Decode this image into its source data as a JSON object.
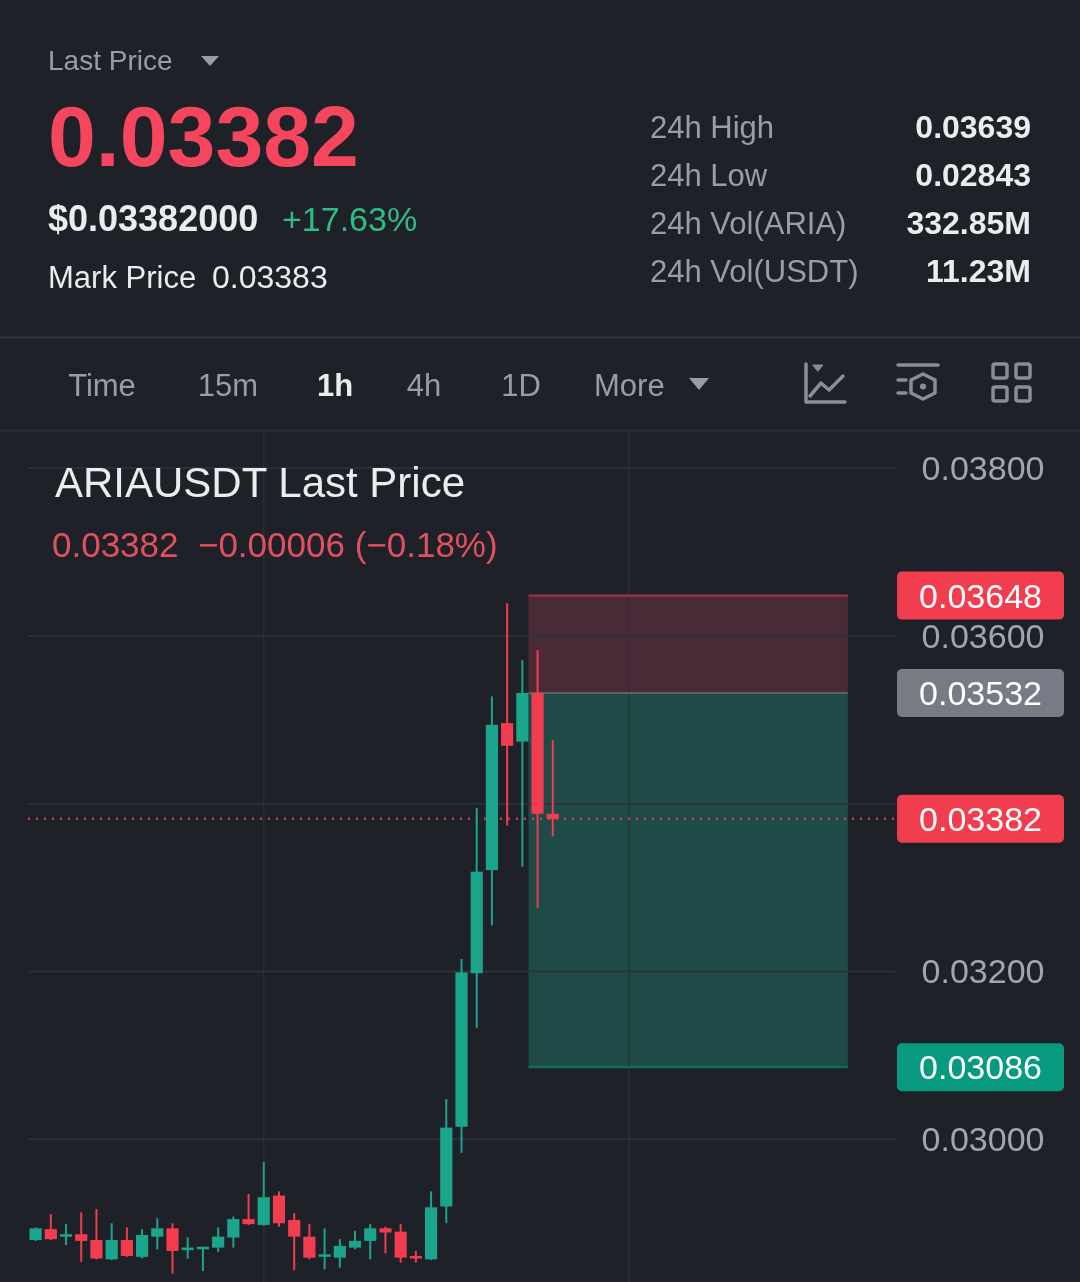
{
  "chart_data": [
    {
      "type": "other",
      "title": "Last Price",
      "annotations": [
        "0.03382",
        "$0.03382000",
        "+17.63%",
        "Mark Price",
        "0.03383",
        "24h High",
        "0.03639",
        "24h Low",
        "0.02843",
        "24h Vol(ARIA)",
        "332.85M",
        "24h Vol(USDT)",
        "11.23M",
        "Time",
        "15m",
        "1h",
        "4h",
        "1D",
        "More"
      ]
    },
    {
      "type": "candlestick",
      "title": "ARIAUSDT Last Price",
      "subtitle": "0.03382  −0.00006 (−0.18%)",
      "categories": [
        null,
        null,
        null,
        null,
        null,
        null,
        null,
        null,
        null,
        null,
        null,
        null,
        null,
        null,
        null,
        null,
        null,
        null,
        null,
        null,
        null,
        null,
        null,
        null,
        null,
        null,
        null,
        null,
        null,
        null,
        null,
        null,
        null,
        null,
        null,
        null,
        null,
        null,
        null,
        null,
        null,
        null,
        null,
        null,
        null,
        null,
        null,
        null,
        null,
        null,
        null,
        null,
        null,
        null,
        null,
        null,
        null
      ],
      "ohlc": [
        [
          0.0288,
          0.02895,
          0.02879,
          0.02894
        ],
        [
          0.02893,
          0.02911,
          0.0288,
          0.02881
        ],
        [
          0.02884,
          0.02899,
          0.02874,
          0.02887
        ],
        [
          0.02887,
          0.02913,
          0.02854,
          0.02879
        ],
        [
          0.0288,
          0.02917,
          0.02857,
          0.02858
        ],
        [
          0.02857,
          0.029,
          0.02856,
          0.0288
        ],
        [
          0.0288,
          0.02895,
          0.0286,
          0.02861
        ],
        [
          0.0286,
          0.02893,
          0.02858,
          0.02886
        ],
        [
          0.02884,
          0.02906,
          0.02869,
          0.02894
        ],
        [
          0.02894,
          0.029,
          0.0284,
          0.02867
        ],
        [
          0.02868,
          0.02883,
          0.02858,
          0.02871
        ],
        [
          0.02869,
          0.02872,
          0.02843,
          0.02872
        ],
        [
          0.02871,
          0.02895,
          0.02866,
          0.02884
        ],
        [
          0.02883,
          0.02908,
          0.02871,
          0.02905
        ],
        [
          0.02905,
          0.02935,
          0.02898,
          0.02899
        ],
        [
          0.02898,
          0.02973,
          0.02897,
          0.02931
        ],
        [
          0.02933,
          0.02938,
          0.02896,
          0.029
        ],
        [
          0.02904,
          0.02912,
          0.02844,
          0.02884
        ],
        [
          0.02884,
          0.02899,
          0.02857,
          0.02859
        ],
        [
          0.0286,
          0.02894,
          0.02845,
          0.02863
        ],
        [
          0.02859,
          0.02881,
          0.02847,
          0.02873
        ],
        [
          0.02871,
          0.02891,
          0.02869,
          0.02879
        ],
        [
          0.02879,
          0.02899,
          0.02857,
          0.02894
        ],
        [
          0.02894,
          0.02896,
          0.02864,
          0.02889
        ],
        [
          0.0289,
          0.02899,
          0.02853,
          0.02859
        ],
        [
          0.02861,
          0.02867,
          0.02853,
          0.02858
        ],
        [
          0.02857,
          0.02938,
          0.02856,
          0.02919
        ],
        [
          0.0292,
          0.03048,
          0.029,
          0.03014
        ],
        [
          0.03015,
          0.03215,
          0.02984,
          0.03199
        ],
        [
          0.03198,
          0.03395,
          0.03133,
          0.03319
        ],
        [
          0.03321,
          0.03528,
          0.03255,
          0.03494
        ],
        [
          0.03496,
          0.03639,
          0.03374,
          0.03469
        ],
        [
          0.03474,
          0.03571,
          0.03325,
          0.03532
        ],
        [
          0.03532,
          0.03583,
          0.03276,
          0.03388
        ],
        [
          0.03388,
          0.03476,
          0.03361,
          0.03382
        ],
        null,
        null,
        null,
        null,
        null,
        null,
        null,
        null,
        null,
        null,
        null,
        null,
        null,
        null,
        null,
        null,
        null,
        null,
        null,
        null,
        null,
        null
      ],
      "colors": [
        "#1ba58c",
        "#f23d4f",
        "#1ba58c",
        "#f23d4f",
        "#f23d4f",
        "#1ba58c",
        "#f23d4f",
        "#1ba58c",
        "#1ba58c",
        "#f23d4f",
        "#1ba58c",
        "#1ba58c",
        "#1ba58c",
        "#1ba58c",
        "#f23d4f",
        "#1ba58c",
        "#f23d4f",
        "#f23d4f",
        "#f23d4f",
        "#1ba58c",
        "#1ba58c",
        "#1ba58c",
        "#1ba58c",
        "#f23d4f",
        "#f23d4f",
        "#f23d4f",
        "#1ba58c",
        "#1ba58c",
        "#1ba58c",
        "#1ba58c",
        "#1ba58c",
        "#f23d4f",
        "#1ba58c",
        "#f23d4f",
        "#f23d4f",
        null,
        null,
        null,
        null,
        null,
        null,
        null,
        null,
        null,
        null,
        null,
        null,
        null,
        null,
        null,
        null,
        null,
        null,
        null,
        null,
        null,
        null
      ],
      "ylim": [
        0.0283,
        0.03843
      ],
      "yticks": [
        {
          "value": 0.03,
          "label": "0.03000"
        },
        {
          "value": 0.032,
          "label": "0.03200"
        },
        {
          "value": 0.034,
          "label": null
        },
        {
          "value": 0.036,
          "label": "0.03600"
        },
        {
          "value": 0.038,
          "label": "0.03800"
        }
      ],
      "tick_labels": "y",
      "grid": "y",
      "bands": [
        {
          "axis": "y",
          "from": 0.03532,
          "to": 0.03648,
          "color": "#4a2a37"
        },
        {
          "axis": "y",
          "from": 0.03086,
          "to": 0.03532,
          "color": "#1e4a47"
        }
      ],
      "ref_lines": [
        {
          "axis": "y",
          "value": 0.03648,
          "label": "0.03648",
          "color": "#f23d4f"
        },
        {
          "axis": "y",
          "value": 0.03532,
          "label": "0.03532",
          "color": "#787b86"
        },
        {
          "axis": "y",
          "value": 0.03382,
          "label": "0.03382",
          "color": "#f23d4f",
          "line_style": "dotted"
        },
        {
          "axis": "y",
          "value": 0.03086,
          "label": "0.03086",
          "color": "#089981"
        }
      ]
    }
  ]
}
